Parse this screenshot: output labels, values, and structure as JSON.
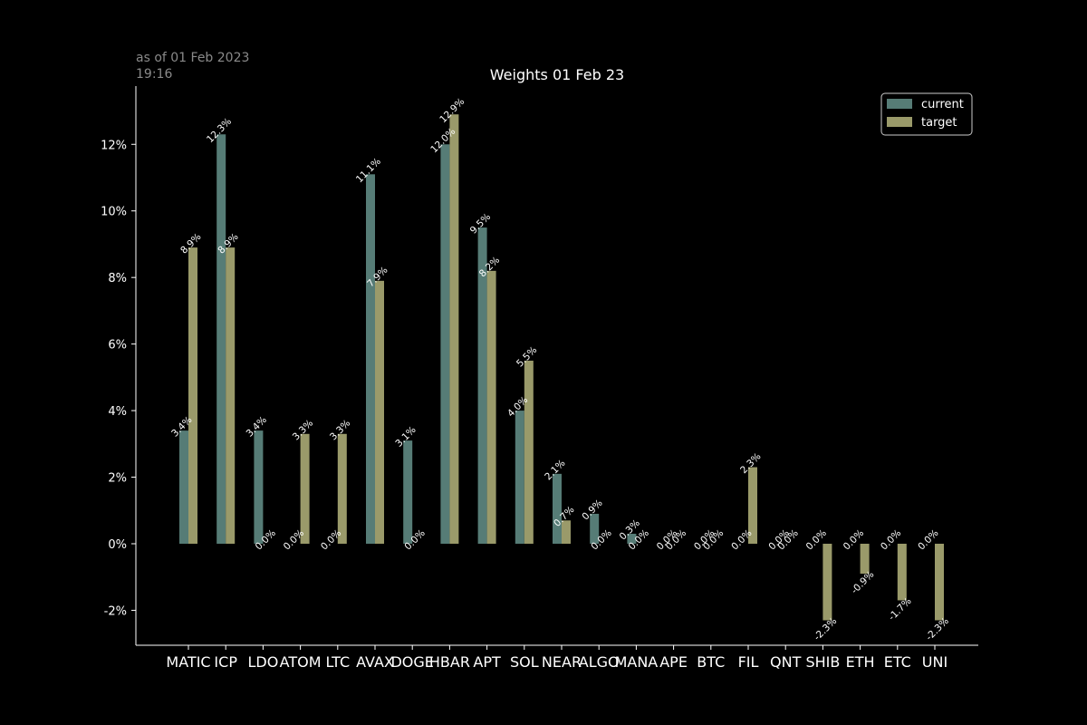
{
  "timestamp": "as of 01 Feb 2023\n19:16",
  "colors": {
    "background": "#000000",
    "current": "#567c76",
    "target": "#9a9a6a",
    "text": "#ffffff",
    "timestamp": "#8a8a8a"
  },
  "chart_data": {
    "type": "bar",
    "title": "Weights 01 Feb 23",
    "xlabel": "",
    "ylabel": "",
    "ylim": [
      -3.05,
      13.75
    ],
    "yticks": [
      -2,
      0,
      2,
      4,
      6,
      8,
      10,
      12
    ],
    "ytick_labels": [
      "-2%",
      "0%",
      "2%",
      "4%",
      "6%",
      "8%",
      "10%",
      "12%"
    ],
    "grid": false,
    "legend_position": "top-right",
    "categories": [
      "MATIC",
      "ICP",
      "LDO",
      "ATOM",
      "LTC",
      "AVAX",
      "DOGE",
      "HBAR",
      "APT",
      "SOL",
      "NEAR",
      "ALGO",
      "MANA",
      "APE",
      "BTC",
      "FIL",
      "QNT",
      "SHIB",
      "ETH",
      "ETC",
      "UNI"
    ],
    "series": [
      {
        "name": "current",
        "values": [
          3.4,
          12.3,
          3.4,
          0.0,
          0.0,
          11.1,
          3.1,
          12.0,
          9.5,
          4.0,
          2.1,
          0.9,
          0.3,
          0.0,
          0.0,
          0.0,
          0.0,
          0.0,
          0.0,
          0.0,
          0.0
        ],
        "labels": [
          "3.4%",
          "12.3%",
          "3.4%",
          "0.0%",
          "0.0%",
          "11.1%",
          "3.1%",
          "12.0%",
          "9.5%",
          "4.0%",
          "2.1%",
          "0.9%",
          "0.3%",
          "0.0%",
          "0.0%",
          "0.0%",
          "0.0%",
          "0.0%",
          "0.0%",
          "0.0%",
          "0.0%"
        ]
      },
      {
        "name": "target",
        "values": [
          8.9,
          8.9,
          0.0,
          3.3,
          3.3,
          7.9,
          0.0,
          12.9,
          8.2,
          5.5,
          0.7,
          0.0,
          0.0,
          0.0,
          0.0,
          2.3,
          0.0,
          -2.3,
          -0.9,
          -1.7,
          -2.3
        ],
        "labels": [
          "8.9%",
          "8.9%",
          "0.0%",
          "3.3%",
          "3.3%",
          "7.9%",
          "0.0%",
          "12.9%",
          "8.2%",
          "5.5%",
          "0.7%",
          "0.0%",
          "0.0%",
          "0.0%",
          "0.0%",
          "2.3%",
          "0.0%",
          "-2.3%",
          "-0.9%",
          "-1.7%",
          "-2.3%"
        ]
      }
    ]
  }
}
